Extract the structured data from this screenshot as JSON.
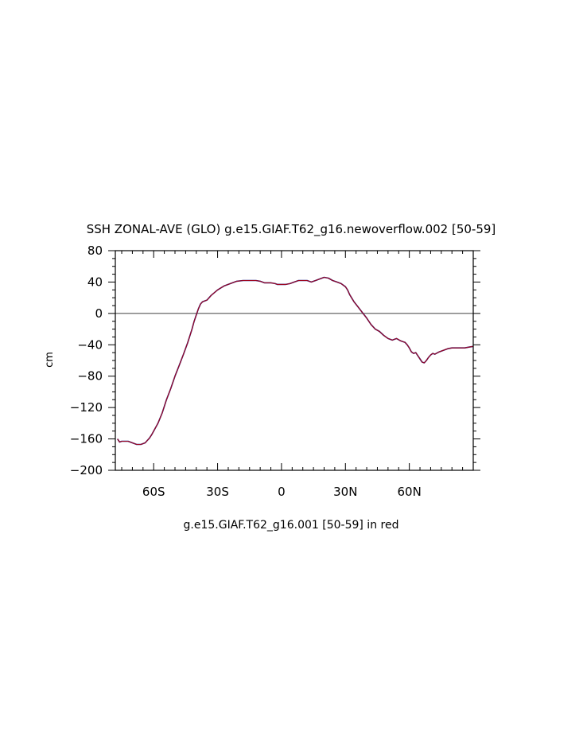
{
  "chart_data": {
    "type": "line",
    "title": "SSH ZONAL-AVE (GLO) g.e15.GIAF.T62_g16.newoverflow.002 [50-59]",
    "subtitle": "g.e15.GIAF.T62_g16.001 [50-59] in red",
    "ylabel": "cm",
    "xlabel": "",
    "xlim": [
      -78,
      90
    ],
    "ylim": [
      -200,
      80
    ],
    "x_ticks": [
      {
        "value": -60,
        "label": "60S"
      },
      {
        "value": -30,
        "label": "30S"
      },
      {
        "value": 0,
        "label": "0"
      },
      {
        "value": 30,
        "label": "30N"
      },
      {
        "value": 60,
        "label": "60N"
      }
    ],
    "y_ticks": [
      {
        "value": 80,
        "label": "80"
      },
      {
        "value": 40,
        "label": "40"
      },
      {
        "value": 0,
        "label": "0"
      },
      {
        "value": -40,
        "label": "−40"
      },
      {
        "value": -80,
        "label": "−80"
      },
      {
        "value": -120,
        "label": "−120"
      },
      {
        "value": -160,
        "label": "−160"
      },
      {
        "value": -200,
        "label": "−200"
      }
    ],
    "reference_line": 0,
    "grid": false,
    "legend": "none",
    "series": [
      {
        "color": "#1a1a80",
        "x": [
          -77,
          -76,
          -75,
          -72,
          -70,
          -68,
          -66,
          -64,
          -63,
          -62,
          -61,
          -60,
          -58,
          -56,
          -54,
          -52,
          -50,
          -48,
          -46,
          -44,
          -42,
          -41,
          -40,
          -39,
          -38,
          -37,
          -36,
          -35,
          -33,
          -30,
          -27,
          -24,
          -21,
          -18,
          -15,
          -12,
          -10,
          -8,
          -5,
          -3,
          -2,
          0,
          2,
          4,
          6,
          8,
          10,
          12,
          14,
          16,
          18,
          20,
          22,
          24,
          26,
          28,
          30,
          31,
          32,
          34,
          36,
          38,
          40,
          42,
          44,
          46,
          48,
          50,
          52,
          54,
          56,
          58,
          59,
          60,
          61,
          62,
          63,
          64,
          65,
          66,
          67,
          68,
          69,
          70,
          71,
          72,
          74,
          76,
          78,
          80,
          82,
          84,
          86,
          88,
          90
        ],
        "y": [
          -160,
          -164,
          -163,
          -163,
          -165,
          -167,
          -167,
          -165,
          -162,
          -159,
          -155,
          -150,
          -140,
          -127,
          -110,
          -96,
          -80,
          -66,
          -52,
          -37,
          -20,
          -10,
          -2,
          6,
          12,
          15,
          16,
          17,
          23,
          30,
          35,
          38,
          41,
          42,
          42,
          42,
          41,
          39,
          39,
          38,
          37,
          37,
          37,
          38,
          40,
          42,
          42,
          42,
          40,
          42,
          44,
          46,
          45,
          42,
          40,
          38,
          34,
          30,
          24,
          15,
          8,
          1,
          -6,
          -14,
          -20,
          -23,
          -28,
          -32,
          -34,
          -32,
          -35,
          -37,
          -40,
          -44,
          -49,
          -51,
          -50,
          -54,
          -58,
          -62,
          -63,
          -60,
          -56,
          -53,
          -51,
          -52,
          -49,
          -47,
          -45,
          -44,
          -44,
          -44,
          -44,
          -43,
          -42
        ]
      },
      {
        "color": "#cc0000",
        "x": [
          -77,
          -76,
          -75,
          -72,
          -70,
          -68,
          -66,
          -64,
          -63,
          -62,
          -61,
          -60,
          -58,
          -56,
          -54,
          -52,
          -50,
          -48,
          -46,
          -44,
          -42,
          -41,
          -40,
          -39,
          -38,
          -37,
          -36,
          -35,
          -33,
          -30,
          -27,
          -24,
          -21,
          -18,
          -15,
          -12,
          -10,
          -8,
          -5,
          -3,
          -2,
          0,
          2,
          4,
          6,
          8,
          10,
          12,
          14,
          16,
          18,
          20,
          22,
          24,
          26,
          28,
          30,
          31,
          32,
          34,
          36,
          38,
          40,
          42,
          44,
          46,
          48,
          50,
          52,
          54,
          56,
          58,
          59,
          60,
          61,
          62,
          63,
          64,
          65,
          66,
          67,
          68,
          69,
          70,
          71,
          72,
          74,
          76,
          78,
          80,
          82,
          84,
          86,
          88,
          90
        ],
        "y": [
          -160,
          -164,
          -163,
          -163,
          -165,
          -167,
          -167,
          -165,
          -162,
          -159,
          -155,
          -150,
          -140,
          -127,
          -110,
          -96,
          -80,
          -66,
          -52,
          -37,
          -20,
          -10,
          -2,
          6,
          12,
          15,
          16,
          17,
          23,
          30,
          35,
          38,
          41,
          42,
          42,
          42,
          41,
          39,
          39,
          38,
          37,
          37,
          37,
          38,
          40,
          42,
          42,
          42,
          40,
          42,
          44,
          46,
          45,
          42,
          40,
          38,
          34,
          30,
          24,
          15,
          8,
          1,
          -6,
          -14,
          -20,
          -23,
          -28,
          -32,
          -34,
          -32,
          -35,
          -37,
          -40,
          -44,
          -49,
          -51,
          -50,
          -54,
          -58,
          -62,
          -63,
          -60,
          -56,
          -53,
          -51,
          -52,
          -49,
          -47,
          -45,
          -44,
          -44,
          -44,
          -44,
          -43,
          -42
        ]
      }
    ]
  }
}
